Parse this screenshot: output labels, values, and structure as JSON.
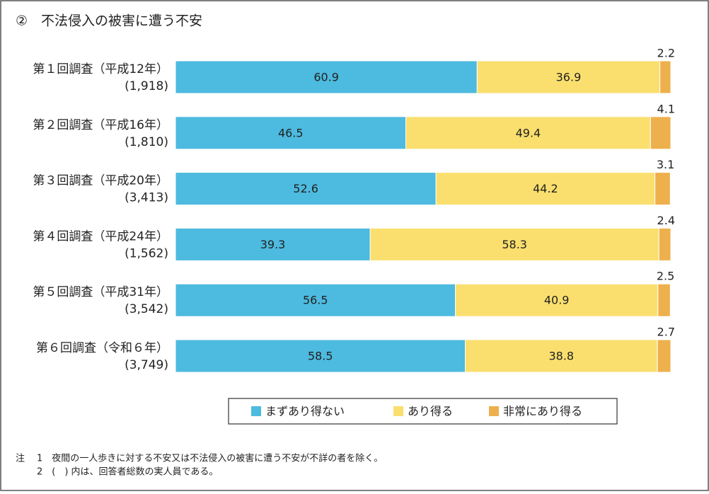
{
  "chart_data": {
    "type": "stacked-bar-horizontal",
    "title": "②　不法侵入の被害に遭う不安",
    "categories": [
      "第１回調査（平成12年）",
      "第２回調査（平成16年）",
      "第３回調査（平成20年）",
      "第４回調査（平成24年）",
      "第５回調査（平成31年）",
      "第６回調査（令和６年）"
    ],
    "sample_sizes": [
      "(1,918)",
      "(1,810)",
      "(3,413)",
      "(1,562)",
      "(3,542)",
      "(3,749)"
    ],
    "xlim": [
      0,
      100
    ],
    "series": [
      {
        "name": "まずあり得ない",
        "color": "#4dbadf",
        "values": [
          60.9,
          46.5,
          52.6,
          39.3,
          56.5,
          58.5
        ]
      },
      {
        "name": "あり得る",
        "color": "#fadf6e",
        "values": [
          36.9,
          49.4,
          44.2,
          58.3,
          40.9,
          38.8
        ]
      },
      {
        "name": "非常にあり得る",
        "color": "#eeb04d",
        "values": [
          2.2,
          4.1,
          3.1,
          2.4,
          2.5,
          2.7
        ]
      }
    ],
    "legend": "bottom",
    "notes_label": "注",
    "notes": [
      "1　夜間の一人歩きに対する不安又は不法侵入の被害に遭う不安が不詳の者を除く。",
      "2　(　) 内は、回答者総数の実人員である。"
    ]
  }
}
